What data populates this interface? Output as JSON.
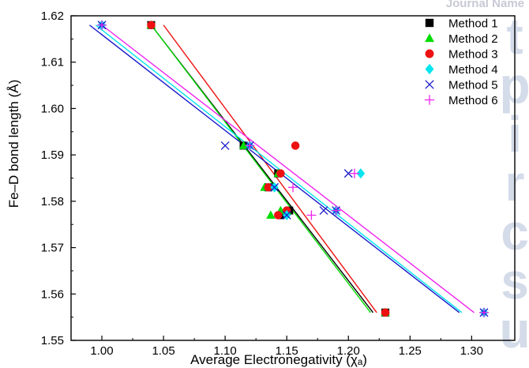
{
  "page": {
    "header_text": "Journal Name",
    "watermark_text": "Manuscript"
  },
  "chart_data": {
    "type": "scatter",
    "title": "",
    "xlabel": "Average Electronegativity (χₐ)",
    "ylabel": "Fe–D bond length (Å)",
    "xlim": [
      0.975,
      1.335
    ],
    "ylim": [
      1.55,
      1.62
    ],
    "x_ticks": [
      "1.00",
      "1.05",
      "1.10",
      "1.15",
      "1.20",
      "1.25",
      "1.30"
    ],
    "y_ticks": [
      "1.55",
      "1.56",
      "1.57",
      "1.58",
      "1.59",
      "1.60",
      "1.61",
      "1.62"
    ],
    "grid": false,
    "legend_position": "top-right",
    "series": [
      {
        "name": "Method 1",
        "color": "#000000",
        "marker": "square",
        "points": [
          [
            1.04,
            1.618
          ],
          [
            1.115,
            1.592
          ],
          [
            1.135,
            1.583
          ],
          [
            1.143,
            1.586
          ],
          [
            1.145,
            1.577
          ],
          [
            1.152,
            1.578
          ],
          [
            1.23,
            1.556
          ]
        ],
        "fit": [
          [
            1.04,
            1.618
          ],
          [
            1.22,
            1.556
          ]
        ]
      },
      {
        "name": "Method 2",
        "color": "#00dd00",
        "marker": "triangle",
        "points": [
          [
            1.04,
            1.618
          ],
          [
            1.115,
            1.592
          ],
          [
            1.132,
            1.583
          ],
          [
            1.137,
            1.577
          ],
          [
            1.143,
            1.586
          ],
          [
            1.145,
            1.578
          ],
          [
            1.15,
            1.578
          ],
          [
            1.23,
            1.556
          ]
        ],
        "fit": [
          [
            1.04,
            1.618
          ],
          [
            1.218,
            1.556
          ]
        ]
      },
      {
        "name": "Method 3",
        "color": "#ee1111",
        "marker": "circle",
        "points": [
          [
            1.04,
            1.618
          ],
          [
            1.135,
            1.583
          ],
          [
            1.143,
            1.577
          ],
          [
            1.145,
            1.586
          ],
          [
            1.157,
            1.592
          ],
          [
            1.15,
            1.578
          ],
          [
            1.23,
            1.556
          ]
        ],
        "fit": [
          [
            1.05,
            1.618
          ],
          [
            1.223,
            1.556
          ]
        ]
      },
      {
        "name": "Method 4",
        "color": "#00e5ee",
        "marker": "diamond",
        "points": [
          [
            1.0,
            1.618
          ],
          [
            1.12,
            1.592
          ],
          [
            1.14,
            1.583
          ],
          [
            1.15,
            1.577
          ],
          [
            1.19,
            1.578
          ],
          [
            1.21,
            1.586
          ],
          [
            1.31,
            1.556
          ]
        ],
        "fit": [
          [
            0.995,
            1.618
          ],
          [
            1.292,
            1.556
          ]
        ]
      },
      {
        "name": "Method 5",
        "color": "#1a1acc",
        "marker": "x",
        "points": [
          [
            1.0,
            1.618
          ],
          [
            1.1,
            1.592
          ],
          [
            1.12,
            1.592
          ],
          [
            1.14,
            1.583
          ],
          [
            1.15,
            1.577
          ],
          [
            1.18,
            1.578
          ],
          [
            1.19,
            1.578
          ],
          [
            1.2,
            1.586
          ],
          [
            1.31,
            1.556
          ]
        ],
        "fit": [
          [
            0.99,
            1.618
          ],
          [
            1.29,
            1.556
          ]
        ]
      },
      {
        "name": "Method 6",
        "color": "#ee22ee",
        "marker": "plus",
        "points": [
          [
            1.0,
            1.618
          ],
          [
            1.12,
            1.592
          ],
          [
            1.155,
            1.583
          ],
          [
            1.17,
            1.577
          ],
          [
            1.19,
            1.578
          ],
          [
            1.205,
            1.586
          ],
          [
            1.31,
            1.556
          ]
        ],
        "fit": [
          [
            1.0,
            1.618
          ],
          [
            1.302,
            1.556
          ]
        ]
      }
    ]
  }
}
